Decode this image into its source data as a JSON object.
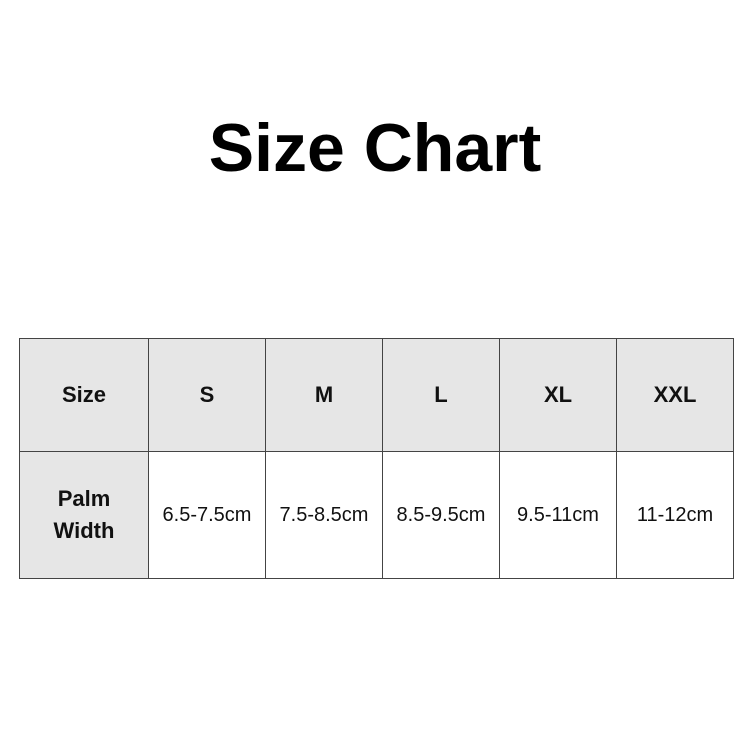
{
  "title": "Size Chart",
  "table": {
    "header_label": "Size",
    "sizes": [
      "S",
      "M",
      "L",
      "XL",
      "XXL"
    ],
    "row_label_line1": "Palm",
    "row_label_line2": "Width",
    "palm_width": [
      "6.5-7.5cm",
      "7.5-8.5cm",
      "8.5-9.5cm",
      "9.5-11cm",
      "11-12cm"
    ]
  },
  "colors": {
    "header_bg": "#e6e6e6",
    "border": "#444444"
  }
}
